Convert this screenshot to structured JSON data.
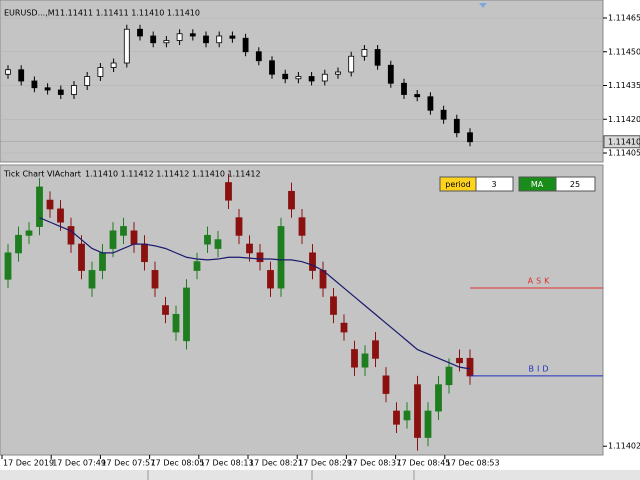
{
  "chart_data": [
    {
      "type": "candlestick",
      "title": "EURUSD...,M1",
      "info": "1.11411 1.11411 1.11410 1.11410",
      "open": [
        1.1144,
        1.11442,
        1.11437,
        1.11434,
        1.11433,
        1.11431,
        1.11435,
        1.11439,
        1.11443,
        1.11445,
        1.1146,
        1.11457,
        1.11454,
        1.11455,
        1.11458,
        1.11457,
        1.11454,
        1.11457,
        1.11456,
        1.1145,
        1.11446,
        1.1144,
        1.11438,
        1.11439,
        1.11437,
        1.1144,
        1.11441,
        1.11448,
        1.11451,
        1.11444,
        1.11436,
        1.11431,
        1.1143,
        1.11424,
        1.1142,
        1.11414
      ],
      "high": [
        1.11444,
        1.11444,
        1.11439,
        1.11436,
        1.11435,
        1.11437,
        1.11441,
        1.11445,
        1.11447,
        1.11462,
        1.11462,
        1.11459,
        1.11457,
        1.1146,
        1.1146,
        1.11459,
        1.11459,
        1.11459,
        1.11458,
        1.11452,
        1.11448,
        1.11442,
        1.11441,
        1.11441,
        1.11442,
        1.11443,
        1.1145,
        1.11453,
        1.11453,
        1.11446,
        1.11438,
        1.11433,
        1.11432,
        1.11426,
        1.11422,
        1.11416
      ],
      "low": [
        1.11438,
        1.11435,
        1.11432,
        1.11431,
        1.11429,
        1.11429,
        1.11433,
        1.11437,
        1.11441,
        1.11443,
        1.11455,
        1.11452,
        1.11452,
        1.11453,
        1.11455,
        1.11452,
        1.11452,
        1.11454,
        1.11448,
        1.11444,
        1.11438,
        1.11436,
        1.11436,
        1.11435,
        1.11435,
        1.11438,
        1.11439,
        1.11446,
        1.11442,
        1.11434,
        1.11429,
        1.11428,
        1.11422,
        1.11418,
        1.11412,
        1.11408
      ],
      "close": [
        1.11442,
        1.11437,
        1.11434,
        1.11433,
        1.11431,
        1.11435,
        1.11439,
        1.11443,
        1.11445,
        1.1146,
        1.11457,
        1.11454,
        1.11455,
        1.11458,
        1.11457,
        1.11454,
        1.11457,
        1.11456,
        1.1145,
        1.11446,
        1.1144,
        1.11438,
        1.11439,
        1.11437,
        1.1144,
        1.11441,
        1.11448,
        1.11451,
        1.11444,
        1.11436,
        1.11431,
        1.1143,
        1.11424,
        1.1142,
        1.11414,
        1.1141
      ],
      "up_color": "#ffffff",
      "down_color": "#000000",
      "outline_color": "#000000",
      "ylim": [
        1.11401,
        1.11473
      ],
      "yticks": [
        {
          "value": 1.11465,
          "label": "1.11465"
        },
        {
          "value": 1.1145,
          "label": "1.11450"
        },
        {
          "value": 1.11435,
          "label": "1.11435"
        },
        {
          "value": 1.1142,
          "label": "1.11420"
        },
        {
          "value": 1.11405,
          "label": "1.11405"
        }
      ],
      "current_price": {
        "value": 1.1141,
        "label": "1.11410"
      },
      "grid": true
    },
    {
      "type": "candlestick",
      "title": "Tick Chart VIAchart",
      "info": "1.11410 1.11412 1.11412 1.11410 1.11412",
      "open": [
        1.11421,
        1.11424,
        1.11426,
        1.11427,
        1.1143,
        1.11429,
        1.11427,
        1.11425,
        1.1142,
        1.11422,
        1.114245,
        1.11426,
        1.114265,
        1.11425,
        1.11422,
        1.11418,
        1.11415,
        1.11414,
        1.11422,
        1.11425,
        1.114245,
        1.11432,
        1.11428,
        1.11425,
        1.11424,
        1.11422,
        1.1142,
        1.11431,
        1.11428,
        1.11424,
        1.11422,
        1.11419,
        1.11416,
        1.11413,
        1.11411,
        1.11414,
        1.1141,
        1.11406,
        1.11405,
        1.11409,
        1.11403,
        1.11406,
        1.11409,
        1.11412,
        1.11412
      ],
      "high": [
        1.11425,
        1.11427,
        1.114275,
        1.114325,
        1.11431,
        1.1143,
        1.11428,
        1.11426,
        1.11423,
        1.11425,
        1.114275,
        1.11428,
        1.114275,
        1.11426,
        1.11423,
        1.11419,
        1.11418,
        1.11421,
        1.11424,
        1.11427,
        1.114265,
        1.11433,
        1.11429,
        1.11426,
        1.11425,
        1.11423,
        1.11428,
        1.11432,
        1.11429,
        1.11425,
        1.11423,
        1.1142,
        1.11417,
        1.11414,
        1.114135,
        1.11415,
        1.11411,
        1.11407,
        1.11407,
        1.1141,
        1.11407,
        1.1141,
        1.11412,
        1.11413,
        1.11413
      ],
      "low": [
        1.1142,
        1.11423,
        1.11425,
        1.11426,
        1.11428,
        1.114265,
        1.11424,
        1.11421,
        1.11419,
        1.11421,
        1.114235,
        1.11425,
        1.11424,
        1.11422,
        1.11419,
        1.11416,
        1.11414,
        1.11413,
        1.11421,
        1.11424,
        1.114235,
        1.11429,
        1.11425,
        1.11423,
        1.11422,
        1.11419,
        1.11419,
        1.11428,
        1.11425,
        1.11421,
        1.11419,
        1.11416,
        1.11414,
        1.1141,
        1.1141,
        1.11411,
        1.11407,
        1.114035,
        1.11404,
        1.114015,
        1.11402,
        1.11405,
        1.11408,
        1.114105,
        1.11409
      ],
      "close": [
        1.11424,
        1.11426,
        1.114265,
        1.114315,
        1.11429,
        1.114275,
        1.11425,
        1.11422,
        1.11422,
        1.11424,
        1.114265,
        1.11427,
        1.11425,
        1.11423,
        1.1142,
        1.11417,
        1.11417,
        1.1142,
        1.11423,
        1.11426,
        1.114255,
        1.1143,
        1.11426,
        1.11424,
        1.11423,
        1.1142,
        1.11427,
        1.11429,
        1.11426,
        1.11422,
        1.1142,
        1.11417,
        1.11415,
        1.11411,
        1.114125,
        1.11412,
        1.11408,
        1.114045,
        1.11406,
        1.11403,
        1.11406,
        1.11409,
        1.11411,
        1.114115,
        1.1141
      ],
      "up_color": "#1e7d1e",
      "down_color": "#8b1010",
      "ma": {
        "color": "#1a1a6e",
        "values": [
          null,
          null,
          null,
          1.11428,
          1.114275,
          1.11427,
          1.114265,
          1.114255,
          1.114245,
          1.11424,
          1.11424,
          1.114245,
          1.11425,
          1.11425,
          1.114248,
          1.114245,
          1.11424,
          1.114235,
          1.114233,
          1.114232,
          1.114233,
          1.114235,
          1.114235,
          1.114234,
          1.114233,
          1.114233,
          1.114232,
          1.114232,
          1.11423,
          1.114226,
          1.11422,
          1.11421,
          1.1142,
          1.11419,
          1.11418,
          1.11417,
          1.11416,
          1.11415,
          1.11414,
          1.11413,
          1.114125,
          1.11412,
          1.114115,
          1.11411,
          1.114108
        ]
      },
      "period_label": "period",
      "period": 3,
      "ma_label": "MA",
      "ma_period": 25,
      "ask": {
        "label": "ASK",
        "value": 1.1142,
        "color": "#e03030"
      },
      "bid": {
        "label": "BID",
        "value": 1.1141,
        "color": "#2030c0"
      },
      "ylim": [
        1.11401,
        1.11434
      ],
      "yticks": [
        {
          "value": 1.11402,
          "label": "1.11402"
        }
      ],
      "time_labels": [
        "17 Dec 2019",
        "17 Dec 07:49",
        "17 Dec 07:57",
        "17 Dec 08:05",
        "17 Dec 08:13",
        "17 Dec 08:21",
        "17 Dec 08:29",
        "17 Dec 08:37",
        "17 Dec 08:45",
        "17 Dec 08:53"
      ]
    }
  ]
}
